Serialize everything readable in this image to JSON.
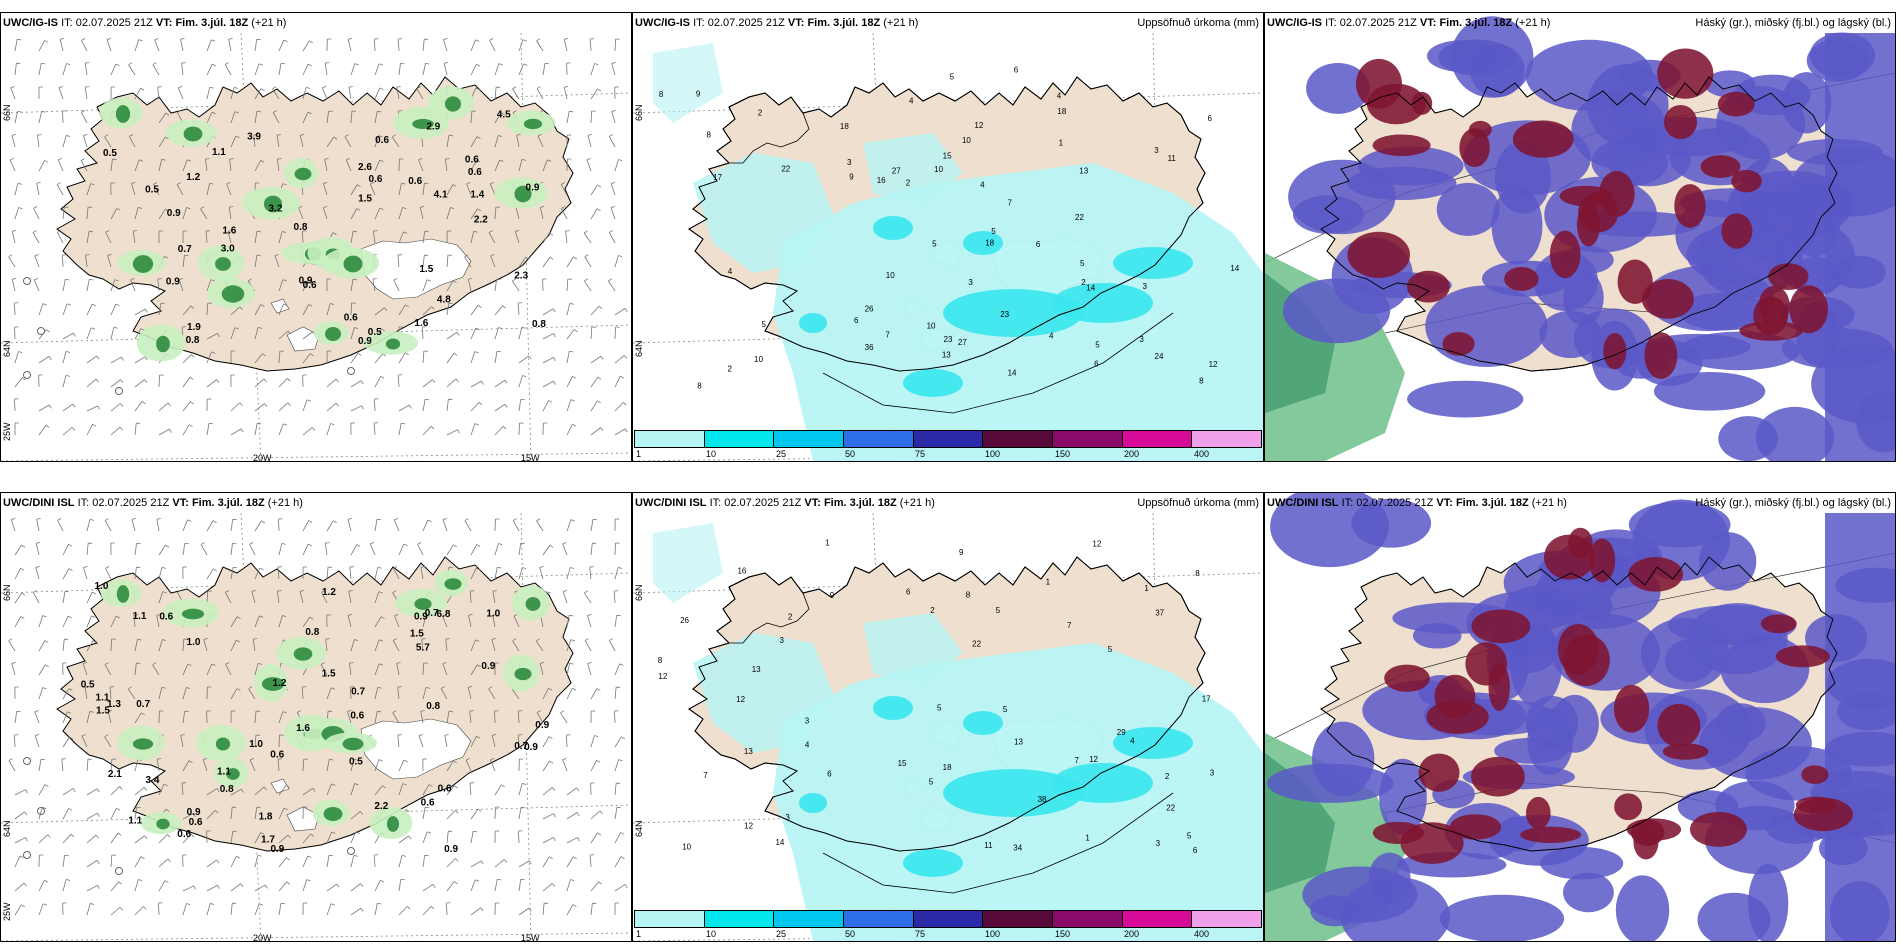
{
  "colors": {
    "land": "#eedfce",
    "sea": "#ffffff",
    "coast": "#000000",
    "precip_light": "#b7f4f4",
    "precip_mid": "#38e7ee",
    "cloud_high": "#7e1531",
    "cloud_mid": "#5a58c8",
    "cloud_low": "#3d6ee0",
    "wind_green": "#30a050"
  },
  "rows": [
    {
      "panels": [
        {
          "model": "UWC/IG-IS",
          "it_label": "IT:",
          "it_value": "02.07.2025 21Z",
          "vt_label": "VT:",
          "vt_value": "Fim. 3.júl. 18Z",
          "lead": "(+21 h)",
          "title_right": "",
          "lon_labels": [
            "20W",
            "15W"
          ],
          "lat_labels": [
            "66N",
            "64N",
            "25W"
          ]
        },
        {
          "model": "UWC/IG-IS",
          "it_label": "IT:",
          "it_value": "02.07.2025 21Z",
          "vt_label": "VT:",
          "vt_value": "Fim. 3.júl. 18Z",
          "lead": "(+21 h)",
          "title_right": "Uppsöfnuð úrkoma (mm)",
          "lat_labels": [
            "66N",
            "64N"
          ]
        },
        {
          "model": "UWC/IG-IS",
          "it_label": "IT:",
          "it_value": "02.07.2025 21Z",
          "vt_label": "VT:",
          "vt_value": "Fim. 3.júl. 18Z",
          "lead": "(+21 h)",
          "title_right": "Háský (gr.), miðský (fj.bl.) og lágský (bl.)"
        }
      ]
    },
    {
      "panels": [
        {
          "model": "UWC/DINI ISL",
          "it_label": "IT:",
          "it_value": "02.07.2025 21Z",
          "vt_label": "VT:",
          "vt_value": "Fim. 3.júl. 18Z",
          "lead": "(+21 h)",
          "title_right": "",
          "lon_labels": [
            "20W",
            "15W"
          ],
          "lat_labels": [
            "66N",
            "64N",
            "25W"
          ]
        },
        {
          "model": "UWC/DINI ISL",
          "it_label": "IT:",
          "it_value": "02.07.2025 21Z",
          "vt_label": "VT:",
          "vt_value": "Fim. 3.júl. 18Z",
          "lead": "(+21 h)",
          "title_right": "Uppsöfnuð úrkoma (mm)",
          "lat_labels": [
            "66N",
            "64N"
          ]
        },
        {
          "model": "UWC/DINI ISL",
          "it_label": "IT:",
          "it_value": "02.07.2025 21Z",
          "vt_label": "VT:",
          "vt_value": "Fim. 3.júl. 18Z",
          "lead": "(+21 h)",
          "title_right": "Háský (gr.), miðský (fj.bl.) og lágský (bl.)"
        }
      ]
    }
  ],
  "precip_legend": {
    "ticks": [
      "1",
      "10",
      "25",
      "50",
      "75",
      "100",
      "150",
      "200",
      "400"
    ],
    "colors": [
      "#b7f4f4",
      "#00e8ee",
      "#00c8ee",
      "#2e6ee6",
      "#2a2aa8",
      "#580a3a",
      "#8a0a6a",
      "#d80a9a",
      "#f0a0e8"
    ]
  },
  "wind_values_top": [
    "0.6",
    "0.9",
    "3.9",
    "0.7",
    "0.9",
    "2.9",
    "3.2",
    "0.8",
    "4.5",
    "0.6",
    "2.3",
    "0.5",
    "4.8",
    "0.6",
    "0.6",
    "0.9",
    "0.6",
    "1.1",
    "1.6",
    "3.0",
    "2.2",
    "1.9",
    "0.8",
    "1.4",
    "0.6",
    "0.9",
    "2.6",
    "0.5",
    "1.5",
    "0.8",
    "0.5",
    "1.2",
    "4.1",
    "1.5",
    "0.9",
    "0.6",
    "1.6"
  ],
  "wind_values_bottom": [
    "0.6",
    "0.9",
    "1.5",
    "1.0",
    "1.1",
    "0.9",
    "0.8",
    "0.6",
    "1.1",
    "0.9",
    "0.5",
    "1.1",
    "0.7",
    "1.6",
    "1.2",
    "0.8",
    "0.9",
    "0.6",
    "0.7",
    "0.6",
    "2.2",
    "1.1",
    "0.7",
    "0.5",
    "0.9",
    "3.4",
    "1.5",
    "1.0",
    "6.8",
    "1.3",
    "1.8",
    "0.7",
    "0.6",
    "0.6",
    "0.9",
    "1.2",
    "2.1",
    "1.0",
    "0.9",
    "1.7",
    "1.0",
    "0.6",
    "0.8",
    "5.7",
    "1.5"
  ],
  "precip_values_top": [
    "2",
    "3",
    "5",
    "3",
    "4",
    "6",
    "3",
    "4",
    "5",
    "6",
    "8",
    "9",
    "7",
    "5",
    "4",
    "3",
    "2",
    "4",
    "5",
    "6",
    "8",
    "10",
    "13",
    "6",
    "14",
    "18",
    "27",
    "10",
    "11",
    "23",
    "24",
    "10",
    "12",
    "8",
    "18",
    "14",
    "23",
    "13",
    "17",
    "10",
    "22",
    "26",
    "18",
    "36",
    "22",
    "16",
    "15",
    "27",
    "14",
    "12",
    "8",
    "10",
    "9",
    "6",
    "5",
    "2",
    "3",
    "2",
    "7",
    "5",
    "4",
    "1"
  ],
  "precip_values_bottom": [
    "2",
    "1",
    "3",
    "4",
    "5",
    "6",
    "7",
    "5",
    "3",
    "8",
    "1",
    "6",
    "5",
    "8",
    "12",
    "13",
    "22",
    "12",
    "10",
    "38",
    "11",
    "8",
    "14",
    "6",
    "12",
    "9",
    "13",
    "12",
    "17",
    "13",
    "37",
    "29",
    "34",
    "26",
    "15",
    "18",
    "22",
    "16",
    "5",
    "7",
    "9",
    "3",
    "3",
    "2",
    "1",
    "1",
    "4",
    "5",
    "2",
    "7",
    "12",
    "5",
    "3"
  ]
}
